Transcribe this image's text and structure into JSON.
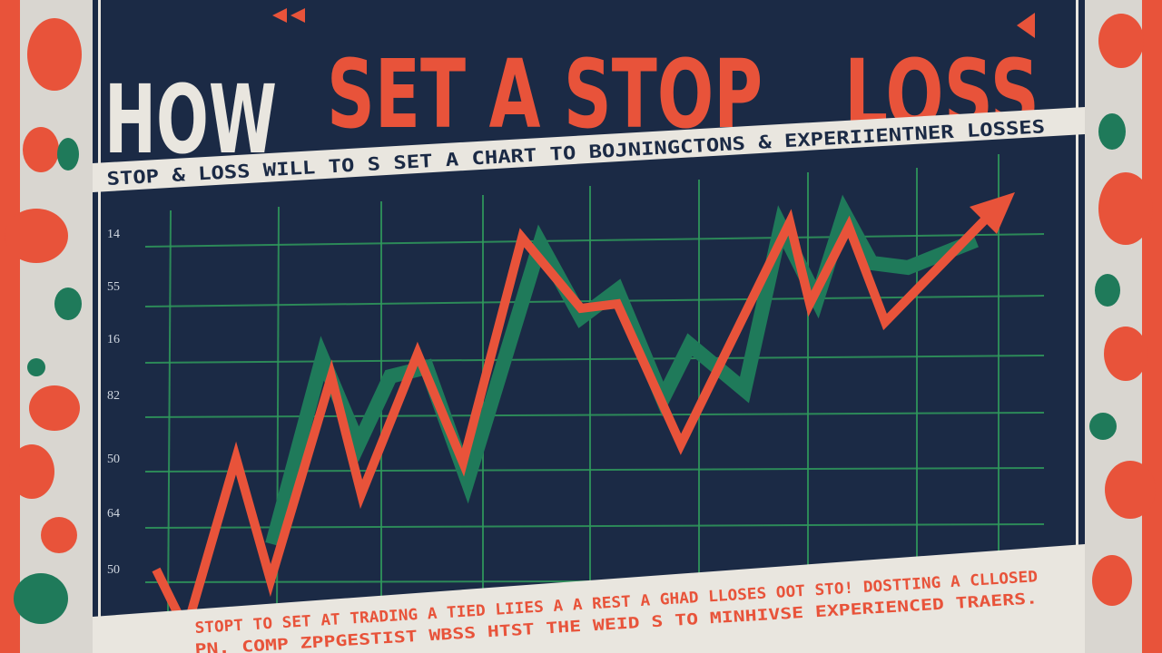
{
  "header": {
    "title_white": "HOW",
    "title_red": "SET A STOP",
    "title_red_2": "LOSS"
  },
  "subtitle": "STOP & LOSS WILL TO S SET A CHART TO BOJNINGCTONS & EXPERIIENTNER LOSSES",
  "axis_labels": [
    "14",
    "55",
    "16",
    "82",
    "50",
    "64",
    "50"
  ],
  "footer": {
    "line1": "STOPT TO SET AT TRADING A TIED LIIES A A REST A GHAD LLOSES OOT STO! DOSTTING A CLLOSED",
    "line2": "PN. COMP ZPPGESTIST WBSS HTST THE WEID S TO MINHIVSE EXPERIENCED TRAERS."
  }
}
